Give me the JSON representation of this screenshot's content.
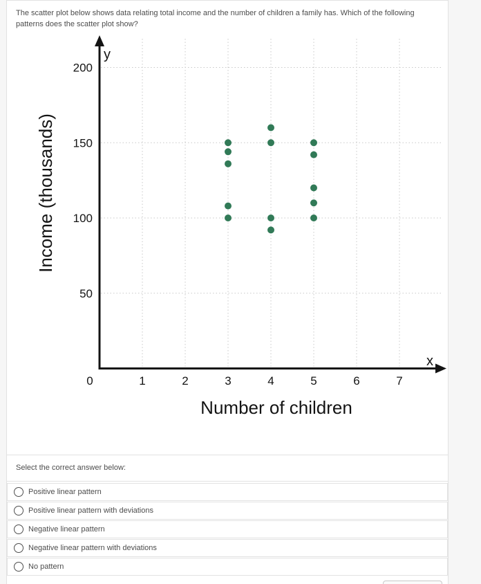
{
  "question": {
    "text": "The scatter plot below shows data relating total income and the number of children a family has. Which of the following patterns does the scatter plot show?"
  },
  "chart_data": {
    "type": "scatter",
    "title": "",
    "xlabel": "Number of children",
    "ylabel": "Income (thousands)",
    "x_axis_letter": "x",
    "y_axis_letter": "y",
    "xlim": [
      0,
      7.7
    ],
    "ylim": [
      0,
      215
    ],
    "x_ticks": [
      0,
      1,
      2,
      3,
      4,
      5,
      6,
      7
    ],
    "y_ticks": [
      50,
      100,
      150,
      200
    ],
    "grid": true,
    "legend": "none",
    "dot_color": "#317a57",
    "points": [
      [
        3,
        150
      ],
      [
        3,
        144
      ],
      [
        3,
        136
      ],
      [
        3,
        108
      ],
      [
        3,
        100
      ],
      [
        4,
        160
      ],
      [
        4,
        150
      ],
      [
        4,
        100
      ],
      [
        4,
        92
      ],
      [
        5,
        150
      ],
      [
        5,
        142
      ],
      [
        5,
        120
      ],
      [
        5,
        110
      ],
      [
        5,
        100
      ]
    ]
  },
  "answer_section": {
    "prompt": "Select the correct answer below:",
    "options": [
      "Positive linear pattern",
      "Positive linear pattern with deviations",
      "Negative linear pattern",
      "Negative linear pattern with deviations",
      "No pattern"
    ],
    "selected_index": -1
  },
  "colors": {
    "dot": "#317a57",
    "panel_border": "#e2e2e2",
    "text": "#4c4c4c",
    "page_background": "#f6f6f6"
  }
}
